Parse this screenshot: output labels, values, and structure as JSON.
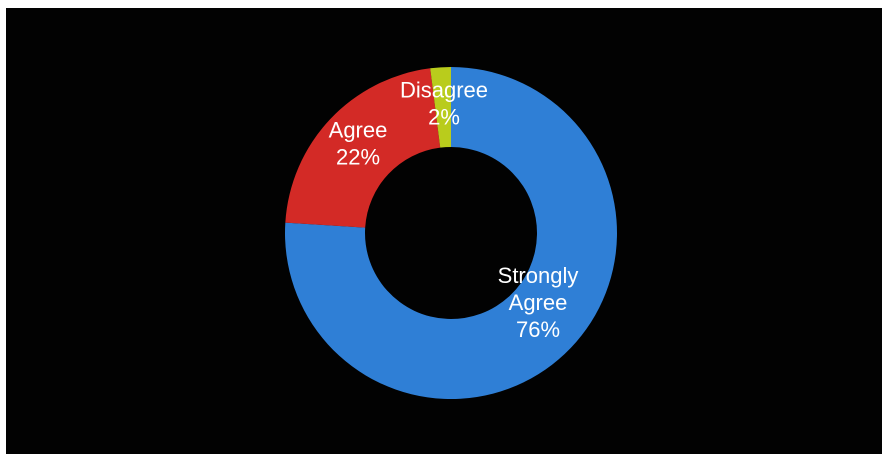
{
  "chart_data": {
    "type": "pie",
    "donut": true,
    "title": "",
    "slices": [
      {
        "name": "Strongly Agree",
        "label_lines": [
          "Strongly",
          "Agree",
          "76%"
        ],
        "value": 76,
        "color": "#2f7fd6"
      },
      {
        "name": "Agree",
        "label_lines": [
          "Agree",
          "22%"
        ],
        "value": 22,
        "color": "#d32a26"
      },
      {
        "name": "Disagree",
        "label_lines": [
          "Disagree",
          "2%"
        ],
        "value": 2,
        "color": "#b9cc1c"
      }
    ],
    "start": "top",
    "direction": "clockwise",
    "legend": "none",
    "background_color": "#020202"
  }
}
